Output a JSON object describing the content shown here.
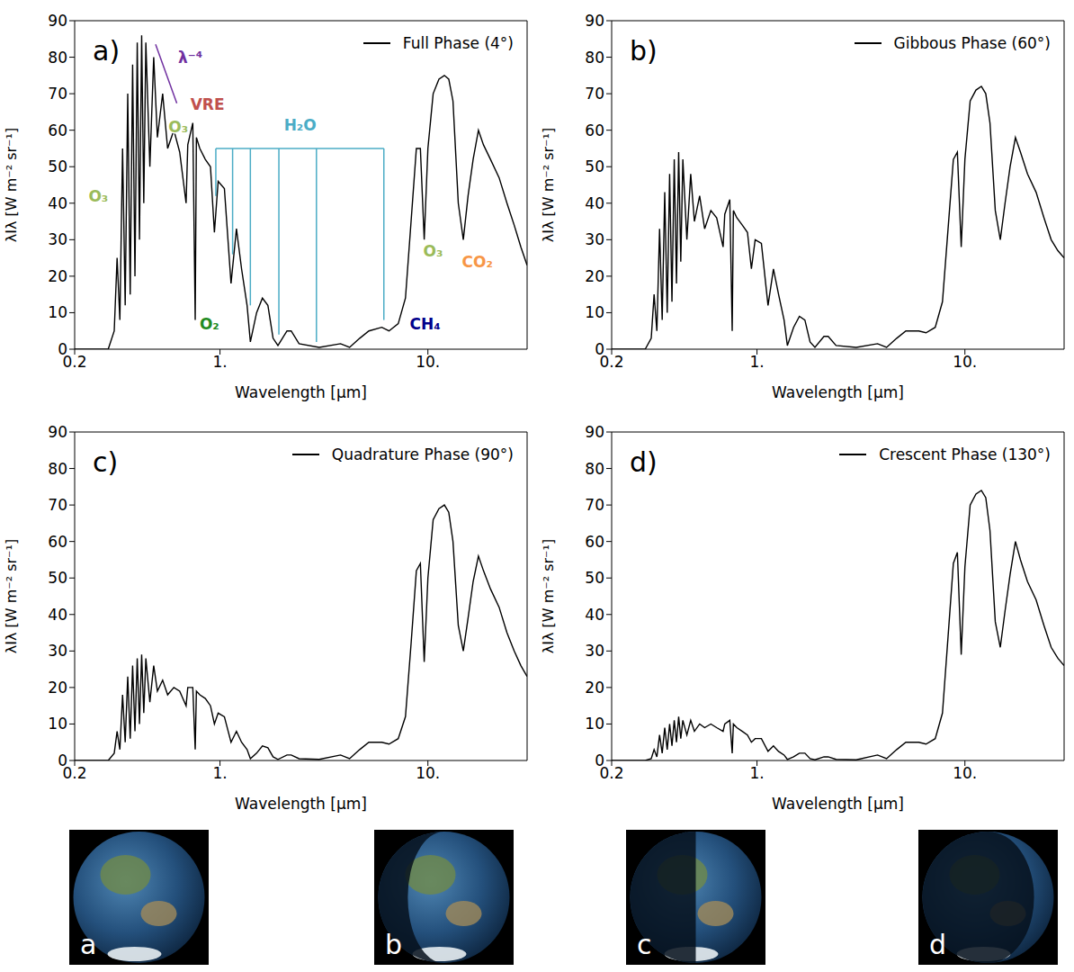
{
  "chart_data": [
    {
      "type": "line",
      "panel": "a)",
      "legend": "upper right",
      "x_label": "Wavelength [μm]",
      "y_label": "λIλ [W m⁻² sr⁻¹]",
      "log": "x",
      "xlim": [
        0.2,
        30
      ],
      "xticks": [
        0.2,
        {
          "value": 1,
          "label": "1."
        },
        {
          "value": 10,
          "label": "10."
        }
      ],
      "ylim": [
        0,
        90
      ],
      "yticks": [
        0,
        10,
        20,
        30,
        40,
        50,
        60,
        70,
        80,
        90
      ],
      "series": [
        {
          "name": "Full Phase (4°)",
          "color": "#000000",
          "x": [
            0.2,
            0.29,
            0.31,
            0.32,
            0.33,
            0.34,
            0.35,
            0.36,
            0.37,
            0.38,
            0.39,
            0.4,
            0.41,
            0.42,
            0.43,
            0.44,
            0.46,
            0.48,
            0.5,
            0.53,
            0.56,
            0.6,
            0.64,
            0.687,
            0.7,
            0.74,
            0.76,
            0.77,
            0.8,
            0.85,
            0.9,
            0.94,
            0.98,
            1.05,
            1.13,
            1.2,
            1.27,
            1.35,
            1.4,
            1.5,
            1.6,
            1.7,
            1.8,
            1.9,
            2.1,
            2.2,
            2.4,
            3.0,
            3.8,
            4.2,
            4.7,
            5.2,
            6.0,
            6.5,
            7.2,
            7.8,
            8.3,
            8.8,
            9.2,
            9.6,
            10.0,
            10.6,
            11.3,
            12.0,
            12.6,
            13.2,
            14.0,
            14.8,
            15.6,
            16.5,
            17.5,
            18.5,
            20,
            22,
            24,
            26,
            28,
            30
          ],
          "values": [
            0,
            0,
            5,
            25,
            8,
            55,
            12,
            70,
            15,
            78,
            20,
            84,
            30,
            86,
            40,
            84,
            50,
            80,
            58,
            70,
            55,
            60,
            54,
            40,
            56,
            62,
            8,
            58,
            55,
            52,
            50,
            32,
            46,
            44,
            18,
            33,
            22,
            12,
            2,
            10,
            14,
            12,
            3,
            1,
            5,
            5,
            1.5,
            0.5,
            1.5,
            0.5,
            3,
            5,
            6,
            5,
            7,
            14,
            35,
            55,
            55,
            30,
            55,
            70,
            74,
            75,
            74,
            68,
            40,
            30,
            42,
            52,
            60,
            56,
            52,
            47,
            40,
            34,
            28,
            23
          ]
        }
      ],
      "annotations": [
        {
          "text": "O₃",
          "x": 0.26,
          "y": 42,
          "color": "#9bbb59"
        },
        {
          "text": "O₃",
          "x": 0.63,
          "y": 61,
          "color": "#9bbb59"
        },
        {
          "text": "VRE",
          "x": 0.87,
          "y": 67,
          "color": "#c0504d"
        },
        {
          "text": "λ⁻⁴",
          "x": 0.72,
          "y": 80,
          "color": "#7030a0"
        },
        {
          "text": "H₂O",
          "x": 2.43,
          "y": 61.5,
          "color": "#4bacc6"
        },
        {
          "text": "O₂",
          "x": 0.89,
          "y": 7,
          "color": "#228b22"
        },
        {
          "text": "CH₄",
          "x": 9.7,
          "y": 7,
          "color": "#00008b"
        },
        {
          "text": "O₃",
          "x": 10.6,
          "y": 27,
          "color": "#9bbb59"
        },
        {
          "text": "CO₂",
          "x": 17.3,
          "y": 24,
          "color": "#f79646"
        }
      ],
      "annotation_lines": [
        {
          "color": "#7030a0",
          "x": [
            0.49,
            0.62
          ],
          "y": [
            83.5,
            67.4
          ]
        },
        {
          "color": "#4bacc6",
          "x": [
            0.955,
            6.14
          ],
          "y": [
            55,
            55
          ]
        },
        {
          "color": "#4bacc6",
          "x": [
            0.955,
            0.955
          ],
          "y": [
            55,
            42
          ]
        },
        {
          "color": "#4bacc6",
          "x": [
            1.15,
            1.15
          ],
          "y": [
            55,
            26
          ]
        },
        {
          "color": "#4bacc6",
          "x": [
            1.4,
            1.4
          ],
          "y": [
            55,
            12
          ]
        },
        {
          "color": "#4bacc6",
          "x": [
            1.92,
            1.92
          ],
          "y": [
            55,
            4
          ]
        },
        {
          "color": "#4bacc6",
          "x": [
            2.91,
            2.91
          ],
          "y": [
            55,
            2
          ]
        },
        {
          "color": "#4bacc6",
          "x": [
            6.14,
            6.14
          ],
          "y": [
            55,
            8
          ]
        }
      ]
    },
    {
      "type": "line",
      "panel": "b)",
      "legend": "upper right",
      "x_label": "Wavelength [μm]",
      "y_label": "λIλ [W m⁻² sr⁻¹]",
      "log": "x",
      "xlim": [
        0.2,
        30
      ],
      "xticks": [
        0.2,
        {
          "value": 1,
          "label": "1."
        },
        {
          "value": 10,
          "label": "10."
        }
      ],
      "ylim": [
        0,
        90
      ],
      "yticks": [
        0,
        10,
        20,
        30,
        40,
        50,
        60,
        70,
        80,
        90
      ],
      "series": [
        {
          "name": "Gibbous Phase (60°)",
          "color": "#000000",
          "x": [
            0.2,
            0.29,
            0.31,
            0.32,
            0.33,
            0.34,
            0.35,
            0.36,
            0.37,
            0.38,
            0.39,
            0.4,
            0.41,
            0.42,
            0.43,
            0.44,
            0.46,
            0.48,
            0.5,
            0.53,
            0.56,
            0.6,
            0.64,
            0.687,
            0.7,
            0.74,
            0.76,
            0.77,
            0.8,
            0.85,
            0.9,
            0.94,
            0.98,
            1.05,
            1.13,
            1.2,
            1.27,
            1.35,
            1.4,
            1.5,
            1.6,
            1.7,
            1.8,
            1.9,
            2.1,
            2.2,
            2.4,
            3.0,
            3.8,
            4.2,
            4.7,
            5.2,
            6.0,
            6.5,
            7.2,
            7.8,
            8.3,
            8.8,
            9.2,
            9.6,
            10.0,
            10.6,
            11.3,
            12.0,
            12.6,
            13.2,
            14.0,
            14.8,
            15.6,
            16.5,
            17.5,
            18.5,
            20,
            22,
            24,
            26,
            28,
            30
          ],
          "values": [
            0,
            0,
            3,
            15,
            5,
            33,
            8,
            43,
            10,
            48,
            13,
            52,
            18,
            54,
            24,
            52,
            30,
            48,
            35,
            42,
            33,
            38,
            36,
            28,
            37,
            41,
            5,
            38,
            36,
            34,
            32,
            22,
            30,
            29,
            12,
            22,
            15,
            8,
            1,
            6,
            9,
            8,
            2,
            0.5,
            3.5,
            3.5,
            1,
            0.5,
            1.5,
            0.5,
            3,
            5,
            5,
            4.5,
            6,
            13,
            33,
            52,
            54,
            28,
            52,
            68,
            71,
            72,
            70,
            62,
            38,
            30,
            40,
            50,
            58,
            54,
            48,
            43,
            36,
            30,
            27,
            25
          ]
        }
      ]
    },
    {
      "type": "line",
      "panel": "c)",
      "legend": "upper right",
      "x_label": "Wavelength [μm]",
      "y_label": "λIλ [W m⁻² sr⁻¹]",
      "log": "x",
      "xlim": [
        0.2,
        30
      ],
      "xticks": [
        0.2,
        {
          "value": 1,
          "label": "1."
        },
        {
          "value": 10,
          "label": "10."
        }
      ],
      "ylim": [
        0,
        90
      ],
      "yticks": [
        0,
        10,
        20,
        30,
        40,
        50,
        60,
        70,
        80,
        90
      ],
      "series": [
        {
          "name": "Quadrature Phase (90°)",
          "color": "#000000",
          "x": [
            0.2,
            0.29,
            0.31,
            0.32,
            0.33,
            0.34,
            0.35,
            0.36,
            0.37,
            0.38,
            0.39,
            0.4,
            0.41,
            0.42,
            0.43,
            0.44,
            0.46,
            0.48,
            0.5,
            0.53,
            0.56,
            0.6,
            0.64,
            0.687,
            0.7,
            0.74,
            0.76,
            0.77,
            0.8,
            0.85,
            0.9,
            0.94,
            0.98,
            1.05,
            1.13,
            1.2,
            1.27,
            1.35,
            1.4,
            1.5,
            1.6,
            1.7,
            1.8,
            1.9,
            2.1,
            2.2,
            2.4,
            3.0,
            3.8,
            4.2,
            4.7,
            5.2,
            6.0,
            6.5,
            7.2,
            7.8,
            8.3,
            8.8,
            9.2,
            9.6,
            10.0,
            10.6,
            11.3,
            12.0,
            12.6,
            13.2,
            14.0,
            14.8,
            15.6,
            16.5,
            17.5,
            18.5,
            20,
            22,
            24,
            26,
            28,
            30
          ],
          "values": [
            0,
            0,
            2,
            8,
            3,
            18,
            5,
            23,
            6,
            26,
            8,
            28,
            10,
            29,
            13,
            28,
            16,
            26,
            19,
            22,
            18,
            20,
            19,
            15,
            20,
            20,
            3,
            19,
            18,
            17,
            15,
            10,
            13,
            12,
            5,
            8,
            5,
            3,
            0.5,
            2,
            4,
            3.5,
            1,
            0.3,
            1.5,
            1.5,
            0.5,
            0.3,
            1.5,
            0.5,
            3,
            5,
            5,
            4.5,
            6,
            12,
            32,
            52,
            54,
            27,
            50,
            66,
            69,
            70,
            68,
            60,
            37,
            30,
            39,
            49,
            56,
            52,
            47,
            42,
            35,
            30,
            26,
            23
          ]
        }
      ]
    },
    {
      "type": "line",
      "panel": "d)",
      "legend": "upper right",
      "x_label": "Wavelength [μm]",
      "y_label": "λIλ [W m⁻² sr⁻¹]",
      "log": "x",
      "xlim": [
        0.2,
        30
      ],
      "xticks": [
        0.2,
        {
          "value": 1,
          "label": "1."
        },
        {
          "value": 10,
          "label": "10."
        }
      ],
      "ylim": [
        0,
        90
      ],
      "yticks": [
        0,
        10,
        20,
        30,
        40,
        50,
        60,
        70,
        80,
        90
      ],
      "series": [
        {
          "name": "Crescent Phase (130°)",
          "color": "#000000",
          "x": [
            0.2,
            0.29,
            0.31,
            0.32,
            0.33,
            0.34,
            0.35,
            0.36,
            0.37,
            0.38,
            0.39,
            0.4,
            0.41,
            0.42,
            0.43,
            0.44,
            0.46,
            0.48,
            0.5,
            0.53,
            0.56,
            0.6,
            0.64,
            0.687,
            0.7,
            0.74,
            0.76,
            0.77,
            0.8,
            0.85,
            0.9,
            0.94,
            0.98,
            1.05,
            1.13,
            1.2,
            1.27,
            1.35,
            1.4,
            1.5,
            1.6,
            1.7,
            1.8,
            1.9,
            2.1,
            2.2,
            2.4,
            3.0,
            3.8,
            4.2,
            4.7,
            5.2,
            6.0,
            6.5,
            7.2,
            7.8,
            8.3,
            8.8,
            9.2,
            9.6,
            10.0,
            10.6,
            11.3,
            12.0,
            12.6,
            13.2,
            14.0,
            14.8,
            15.6,
            16.5,
            17.5,
            18.5,
            20,
            22,
            24,
            26,
            28,
            30
          ],
          "values": [
            0,
            0,
            0.5,
            3,
            1,
            7,
            2,
            9,
            3,
            10,
            4,
            11,
            5,
            12,
            6,
            11,
            7,
            11,
            8,
            10,
            9,
            10,
            9,
            8,
            10,
            11,
            2,
            10,
            9,
            8,
            7,
            5,
            6,
            6,
            2.5,
            4,
            2.5,
            1.5,
            0.3,
            1,
            2,
            2,
            0.5,
            0.2,
            1,
            1,
            0.3,
            0.2,
            1.5,
            0.5,
            3,
            5,
            5,
            4.5,
            6,
            13,
            34,
            54,
            57,
            29,
            53,
            70,
            73,
            74,
            72,
            63,
            38,
            31,
            41,
            51,
            60,
            55,
            49,
            44,
            37,
            31,
            28,
            26
          ]
        }
      ]
    }
  ],
  "images": [
    "a",
    "b",
    "c",
    "d"
  ]
}
